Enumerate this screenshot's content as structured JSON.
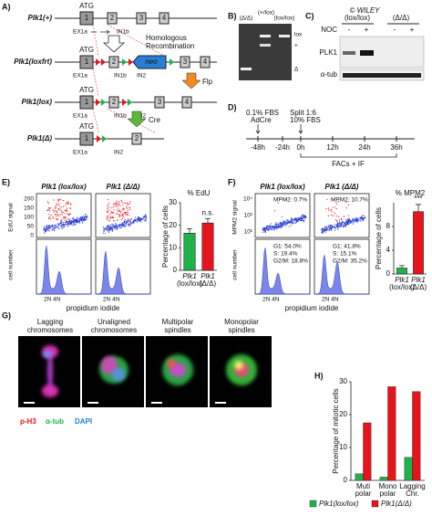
{
  "panel_labels": [
    "A)",
    "B)",
    "C)",
    "D)",
    "E)",
    "F)",
    "G)",
    "H)"
  ],
  "panel_a": {
    "alleles": [
      "Plk1(+)",
      "Plk1(loxfrt)",
      "Plk1(lox)",
      "Plk1(Δ)"
    ],
    "atg": "ATG",
    "exons": [
      "1",
      "2",
      "3",
      "4"
    ],
    "ex1a": "EX1a",
    "in1b": "IN1b",
    "in2": "IN2",
    "neo": "neo",
    "recombination": [
      "Homologous",
      "Recombination"
    ],
    "flp": "Flp",
    "cre": "Cre"
  },
  "panel_b": {
    "lanes": [
      "(Δ/Δ)",
      "(+/lox)",
      "(lox/lox)"
    ],
    "bands": [
      "lox",
      "+",
      "Δ"
    ]
  },
  "panel_c": {
    "genotypes": [
      "(lox/lox)",
      "(Δ/Δ)"
    ],
    "treatment": "NOC",
    "treatment_states": [
      "-",
      "+",
      "-",
      "+"
    ],
    "proteins": [
      "PLK1",
      "α-tub"
    ],
    "watermark": "© WILEY"
  },
  "panel_d": {
    "start": [
      "0.1% FBS",
      "AdCre"
    ],
    "split": [
      "Split 1:6",
      "10% FBS"
    ],
    "times": [
      "-48h",
      "-24h",
      "0h",
      "12h",
      "24h",
      "36h"
    ],
    "analysis": "FACs + IF"
  },
  "panel_e": {
    "genotypes": [
      "Plk1 (lox/lox)",
      "Plk1 (Δ/Δ)"
    ],
    "y_labels": [
      "EdU signal",
      "cell number"
    ],
    "scatter_yticks": [
      "200",
      "150",
      "100",
      "50",
      "0"
    ],
    "x_label": "propidium iodide",
    "ploidy": "2N 4N"
  },
  "panel_f": {
    "genotypes": [
      "Plk1 (lox/lox)",
      "Plk1 (Δ/Δ)"
    ],
    "y_labels": [
      "MPM2 signal",
      "cell number"
    ],
    "scatter_yticks": [
      "10⁴",
      "10³",
      "10²"
    ],
    "mpm2": [
      "MPM2: 0.7%",
      "MPM2: 10.7%"
    ],
    "cell_cycle": [
      [
        "G1: 54.0%",
        "S: 19.4%",
        "G2/M: 18.8%"
      ],
      [
        "G1: 41.8%",
        "S: 15.1%",
        "G2/M: 35.2%"
      ]
    ],
    "x_label": "propidium iodide",
    "ploidy": "2N 4N"
  },
  "panel_g": {
    "phenotypes": [
      [
        "Lagging",
        "chromosomes"
      ],
      [
        "Unaligned",
        "chromosomes"
      ],
      [
        "Multipolar",
        "spindles"
      ],
      [
        "Monopolar",
        "spindles"
      ]
    ],
    "stains": [
      "p-H3",
      "α-tub",
      "DAPI"
    ]
  },
  "chart_data": [
    {
      "type": "bar",
      "title": "% EdU",
      "ylabel": "Percentage of cells",
      "categories": [
        [
          "Plk1",
          "(lox/lox)"
        ],
        [
          "Plk1",
          "(Δ/Δ)"
        ]
      ],
      "values": [
        16.5,
        21
      ],
      "errors": [
        2,
        2
      ],
      "colors": [
        "#1db34a",
        "#e8141b"
      ],
      "ylim": [
        0,
        30
      ],
      "yticks": [
        0,
        10,
        20,
        30
      ],
      "annotation": "n.s."
    },
    {
      "type": "bar",
      "title": "% MPM2",
      "ylabel": "Percentage of cells",
      "categories": [
        [
          "Plk1",
          "(lox/lox)"
        ],
        [
          "Plk1",
          "(Δ/Δ)"
        ]
      ],
      "values": [
        1,
        10.5
      ],
      "errors": [
        0.4,
        1.2
      ],
      "colors": [
        "#1db34a",
        "#e8141b"
      ],
      "ylim": [
        0,
        12
      ],
      "yticks": [
        0,
        4,
        8
      ],
      "annotation": "***"
    },
    {
      "type": "bar",
      "ylabel": "Percentage of mitotic cells",
      "categories": [
        [
          "Muti",
          "polar"
        ],
        [
          "Mono",
          "polar"
        ],
        [
          "Lagging",
          "Chr."
        ]
      ],
      "series": [
        {
          "name": "Plk1(lox/lox)",
          "color": "#1db34a",
          "values": [
            2,
            1,
            7
          ]
        },
        {
          "name": "Plk1(Δ/Δ)",
          "color": "#e8141b",
          "values": [
            17.5,
            28.5,
            27
          ]
        }
      ],
      "ylim": [
        0,
        30
      ],
      "yticks": [
        0,
        10,
        20,
        30
      ],
      "legend": "bottom"
    }
  ]
}
